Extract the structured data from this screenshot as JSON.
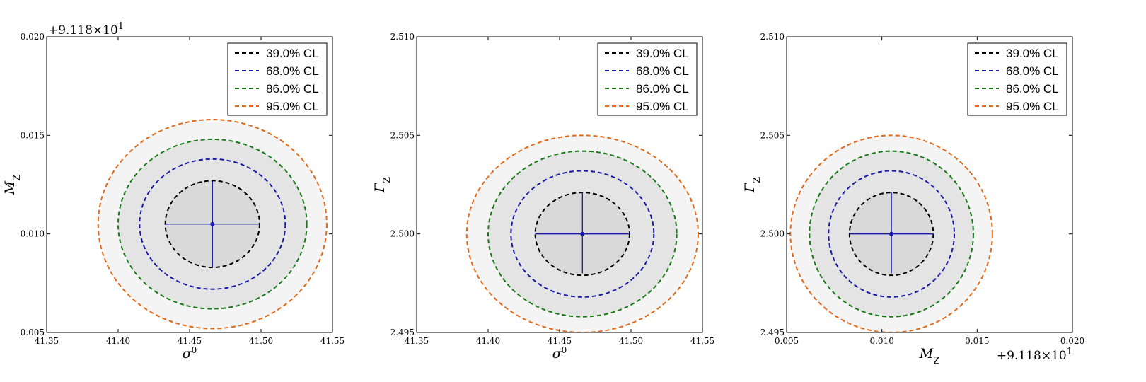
{
  "chart_data": [
    {
      "type": "contour",
      "xlabel": "σ⁰",
      "ylabel": "M_Z",
      "xlim": [
        41.35,
        41.55
      ],
      "ylim": [
        0.005,
        0.02
      ],
      "xticks": [
        "41.35",
        "41.40",
        "41.45",
        "41.50",
        "41.55"
      ],
      "yticks": [
        "0.005",
        "0.010",
        "0.015",
        "0.020"
      ],
      "y_offset": "+9.118×10¹",
      "x_offset": "",
      "center": [
        41.466,
        0.0105
      ],
      "error_x": [
        41.433,
        41.499
      ],
      "error_y": [
        0.0083,
        0.0127
      ],
      "legend_position": "upper right",
      "contours": [
        {
          "label": "39.0% CL",
          "color": "#000000",
          "cx": 41.466,
          "cy": 0.0105,
          "rx": 0.033,
          "ry": 0.0022
        },
        {
          "label": "68.0% CL",
          "color": "#1a1aa6",
          "cx": 41.466,
          "cy": 0.0105,
          "rx": 0.051,
          "ry": 0.0033
        },
        {
          "label": "86.0% CL",
          "color": "#1a7a1a",
          "cx": 41.466,
          "cy": 0.0105,
          "rx": 0.066,
          "ry": 0.0043
        },
        {
          "label": "95.0% CL",
          "color": "#e06a1a",
          "cx": 41.466,
          "cy": 0.0105,
          "rx": 0.08,
          "ry": 0.0053
        }
      ]
    },
    {
      "type": "contour",
      "xlabel": "σ⁰",
      "ylabel": "Γ_Z",
      "xlim": [
        41.35,
        41.55
      ],
      "ylim": [
        2.495,
        2.51
      ],
      "xticks": [
        "41.35",
        "41.40",
        "41.45",
        "41.50",
        "41.55"
      ],
      "yticks": [
        "2.495",
        "2.500",
        "2.505",
        "2.510"
      ],
      "y_offset": "",
      "x_offset": "",
      "center": [
        41.466,
        2.5
      ],
      "error_x": [
        41.433,
        41.499
      ],
      "error_y": [
        2.498,
        2.5021
      ],
      "legend_position": "upper right",
      "contours": [
        {
          "label": "39.0% CL",
          "color": "#000000",
          "cx": 41.466,
          "cy": 2.5,
          "rx": 0.033,
          "ry": 0.0021
        },
        {
          "label": "68.0% CL",
          "color": "#1a1aa6",
          "cx": 41.466,
          "cy": 2.5,
          "rx": 0.05,
          "ry": 0.0032
        },
        {
          "label": "86.0% CL",
          "color": "#1a7a1a",
          "cx": 41.466,
          "cy": 2.5,
          "rx": 0.066,
          "ry": 0.0042
        },
        {
          "label": "95.0% CL",
          "color": "#e06a1a",
          "cx": 41.466,
          "cy": 2.5,
          "rx": 0.081,
          "ry": 0.005
        }
      ]
    },
    {
      "type": "contour",
      "xlabel": "M_Z",
      "ylabel": "Γ_Z",
      "xlim": [
        0.005,
        0.02
      ],
      "ylim": [
        2.495,
        2.51
      ],
      "xticks": [
        "0.005",
        "0.010",
        "0.015",
        "0.020"
      ],
      "yticks": [
        "2.495",
        "2.500",
        "2.505",
        "2.510"
      ],
      "y_offset": "",
      "x_offset": "+9.118×10¹",
      "center": [
        0.0105,
        2.5
      ],
      "error_x": [
        0.0083,
        0.0127
      ],
      "error_y": [
        2.498,
        2.5021
      ],
      "legend_position": "upper right",
      "contours": [
        {
          "label": "39.0% CL",
          "color": "#000000",
          "cx": 0.0105,
          "cy": 2.5,
          "rx": 0.0022,
          "ry": 0.0021
        },
        {
          "label": "68.0% CL",
          "color": "#1a1aa6",
          "cx": 0.0105,
          "cy": 2.5,
          "rx": 0.0033,
          "ry": 0.0032
        },
        {
          "label": "86.0% CL",
          "color": "#1a7a1a",
          "cx": 0.0105,
          "cy": 2.5,
          "rx": 0.0043,
          "ry": 0.0042
        },
        {
          "label": "95.0% CL",
          "color": "#e06a1a",
          "cx": 0.0105,
          "cy": 2.5,
          "rx": 0.0053,
          "ry": 0.005
        }
      ]
    }
  ],
  "colors": {
    "fill_inner": "#d9d9d9",
    "fill_mid": "#e4e4e4",
    "fill_outer": "#f4f4f4",
    "center_marker": "#1a1aa6"
  }
}
